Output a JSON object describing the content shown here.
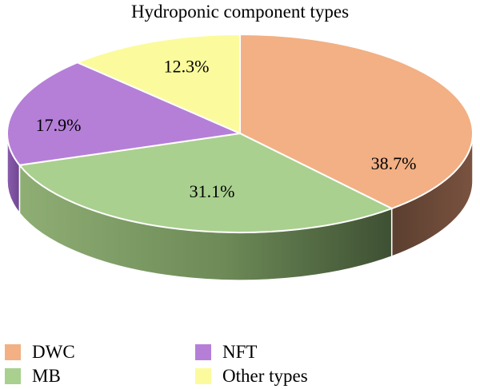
{
  "chart_data": {
    "type": "pie",
    "title": "Hydroponic component types",
    "slices": [
      {
        "label": "DWC",
        "value": 38.7,
        "display": "38.7%",
        "color": "#f2b084",
        "side_color": "#6e4a36"
      },
      {
        "label": "MB",
        "value": 31.1,
        "display": "31.1%",
        "color": "#a9d08e",
        "side_color": "#6e8a5a"
      },
      {
        "label": "NFT",
        "value": 17.9,
        "display": "17.9%",
        "color": "#b57fd8",
        "side_color": "#7a4d99"
      },
      {
        "label": "Other types",
        "value": 12.3,
        "display": "12.3%",
        "color": "#fbfb9e",
        "side_color": "#c9c97a"
      }
    ],
    "legend_position": "bottom",
    "style": "3d"
  }
}
